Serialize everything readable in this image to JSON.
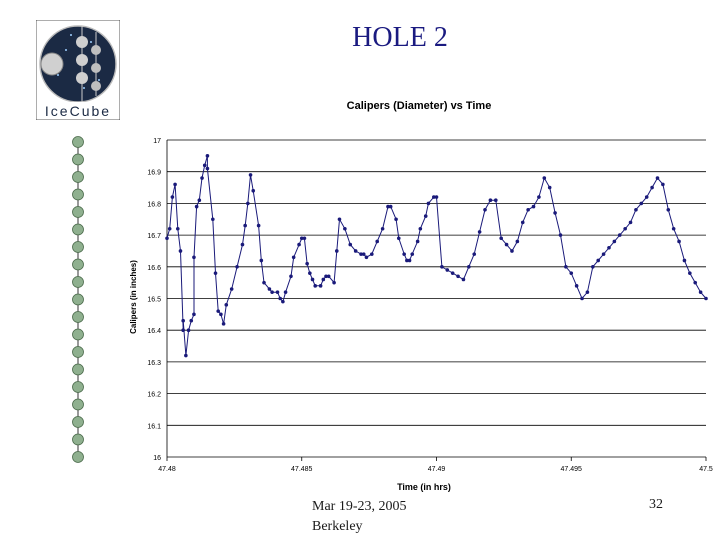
{
  "slide": {
    "title": "HOLE 2",
    "footer_date_line1": "Mar 19-23, 2005",
    "footer_date_line2": "Berkeley",
    "page_number": "32"
  },
  "logo": {
    "text": "IceCube",
    "icon": "icecube-logo"
  },
  "colors": {
    "title": "#1a1a80",
    "series": "#1a1a7a",
    "grid": "#000000"
  },
  "chart_data": {
    "type": "line",
    "title": "Calipers (Diameter) vs Time",
    "xlabel": "Time (in hrs)",
    "ylabel": "Calipers (in inches)",
    "xlim": [
      47.48,
      47.5
    ],
    "ylim": [
      16.0,
      17.0
    ],
    "x_ticks": [
      "47.48",
      "47.485",
      "47.49",
      "47.495",
      "47.5"
    ],
    "y_ticks": [
      "16",
      "16.1",
      "16.2",
      "16.3",
      "16.4",
      "16.5",
      "16.6",
      "16.7",
      "16.8",
      "16.9",
      "17"
    ],
    "grid": "horizontal",
    "legend": "none",
    "series": [
      {
        "x": [
          47.48,
          47.4801,
          47.4802,
          47.4803,
          47.4804,
          47.4805,
          47.4806,
          47.4806,
          47.4807,
          47.4808,
          47.4809,
          47.481,
          47.481,
          47.4811,
          47.4812,
          47.4813,
          47.4814,
          47.4815,
          47.4815,
          47.4817,
          47.4818,
          47.4819,
          47.482,
          47.4821,
          47.4822,
          47.4824,
          47.4826,
          47.4828,
          47.4829,
          47.483,
          47.4831,
          47.4832,
          47.4834,
          47.4835,
          47.4836,
          47.4838,
          47.4839,
          47.4841,
          47.4842,
          47.4843,
          47.4844,
          47.4846,
          47.4847,
          47.4849,
          47.485,
          47.4851,
          47.4852,
          47.4853,
          47.4854,
          47.4855,
          47.4857,
          47.4858,
          47.4859,
          47.486,
          47.4862,
          47.4863,
          47.4864,
          47.4866,
          47.4868,
          47.487,
          47.4872,
          47.4873,
          47.4874,
          47.4876,
          47.4878,
          47.488,
          47.4882,
          47.4883,
          47.4885,
          47.4886,
          47.4888,
          47.4889,
          47.489,
          47.4891,
          47.4893,
          47.4894,
          47.4896,
          47.4897,
          47.4899,
          47.49,
          47.4902,
          47.4904,
          47.4906,
          47.4908,
          47.491,
          47.4912,
          47.4914,
          47.4916,
          47.4918,
          47.492,
          47.4922,
          47.4924,
          47.4926,
          47.4928,
          47.493,
          47.4932,
          47.4934,
          47.4936,
          47.4938,
          47.494,
          47.4942,
          47.4944,
          47.4946,
          47.4948,
          47.495,
          47.4952,
          47.4954,
          47.4956,
          47.4958,
          47.496,
          47.4962,
          47.4964,
          47.4966,
          47.4968,
          47.497,
          47.4972,
          47.4974,
          47.4976,
          47.4978,
          47.498,
          47.4982,
          47.4984,
          47.4986,
          47.4988,
          47.499,
          47.4992,
          47.4994,
          47.4996,
          47.4998,
          47.5
        ],
        "y": [
          16.69,
          16.72,
          16.82,
          16.86,
          16.72,
          16.65,
          16.4,
          16.43,
          16.32,
          16.4,
          16.43,
          16.45,
          16.63,
          16.79,
          16.81,
          16.88,
          16.92,
          16.95,
          16.91,
          16.75,
          16.58,
          16.46,
          16.45,
          16.42,
          16.48,
          16.53,
          16.6,
          16.67,
          16.73,
          16.8,
          16.89,
          16.84,
          16.73,
          16.62,
          16.55,
          16.53,
          16.52,
          16.52,
          16.5,
          16.49,
          16.52,
          16.57,
          16.63,
          16.67,
          16.69,
          16.69,
          16.61,
          16.58,
          16.56,
          16.54,
          16.54,
          16.56,
          16.57,
          16.57,
          16.55,
          16.65,
          16.75,
          16.72,
          16.67,
          16.65,
          16.64,
          16.64,
          16.63,
          16.64,
          16.68,
          16.72,
          16.79,
          16.79,
          16.75,
          16.69,
          16.64,
          16.62,
          16.62,
          16.64,
          16.68,
          16.72,
          16.76,
          16.8,
          16.82,
          16.82,
          16.6,
          16.59,
          16.58,
          16.57,
          16.56,
          16.6,
          16.64,
          16.71,
          16.78,
          16.81,
          16.81,
          16.69,
          16.67,
          16.65,
          16.68,
          16.74,
          16.78,
          16.79,
          16.82,
          16.88,
          16.85,
          16.77,
          16.7,
          16.6,
          16.58,
          16.54,
          16.5,
          16.52,
          16.6,
          16.62,
          16.64,
          16.66,
          16.68,
          16.7,
          16.72,
          16.74,
          16.78,
          16.8,
          16.82,
          16.85,
          16.88,
          16.86,
          16.78,
          16.72,
          16.68,
          16.62,
          16.58,
          16.55,
          16.52,
          16.5
        ]
      }
    ]
  }
}
